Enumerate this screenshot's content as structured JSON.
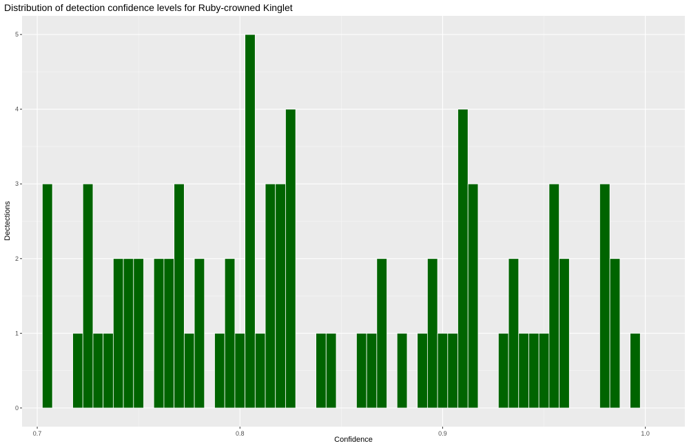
{
  "chart_data": {
    "type": "bar",
    "title": "Distribution of detection confidence levels for Ruby-crowned Kinglet",
    "xlabel": "Confidence",
    "ylabel": "Dectections",
    "xlim": [
      0.6925,
      1.0195
    ],
    "ylim": [
      -0.25,
      5.25
    ],
    "x_ticks": [
      0.7,
      0.8,
      0.9,
      1.0
    ],
    "x_tick_labels": [
      "0.7",
      "0.8",
      "0.9",
      "1.0"
    ],
    "y_ticks": [
      0,
      1,
      2,
      3,
      4,
      5
    ],
    "y_tick_labels": [
      "0",
      "1",
      "2",
      "3",
      "4",
      "5"
    ],
    "bin_width": 0.005,
    "bar_color": "#006400",
    "panel_background": "#ebebeb",
    "grid": true,
    "x": [
      0.705,
      0.72,
      0.725,
      0.73,
      0.735,
      0.74,
      0.745,
      0.75,
      0.76,
      0.765,
      0.77,
      0.775,
      0.78,
      0.79,
      0.795,
      0.8,
      0.805,
      0.81,
      0.815,
      0.82,
      0.825,
      0.84,
      0.845,
      0.86,
      0.865,
      0.87,
      0.88,
      0.89,
      0.895,
      0.9,
      0.905,
      0.91,
      0.915,
      0.93,
      0.935,
      0.94,
      0.945,
      0.95,
      0.955,
      0.96,
      0.98,
      0.985,
      0.995
    ],
    "values": [
      3,
      1,
      3,
      1,
      1,
      2,
      2,
      2,
      2,
      2,
      3,
      1,
      2,
      1,
      2,
      1,
      5,
      1,
      3,
      3,
      4,
      1,
      1,
      1,
      1,
      2,
      1,
      1,
      2,
      1,
      1,
      4,
      3,
      1,
      2,
      1,
      1,
      1,
      3,
      2,
      3,
      2,
      1
    ]
  }
}
